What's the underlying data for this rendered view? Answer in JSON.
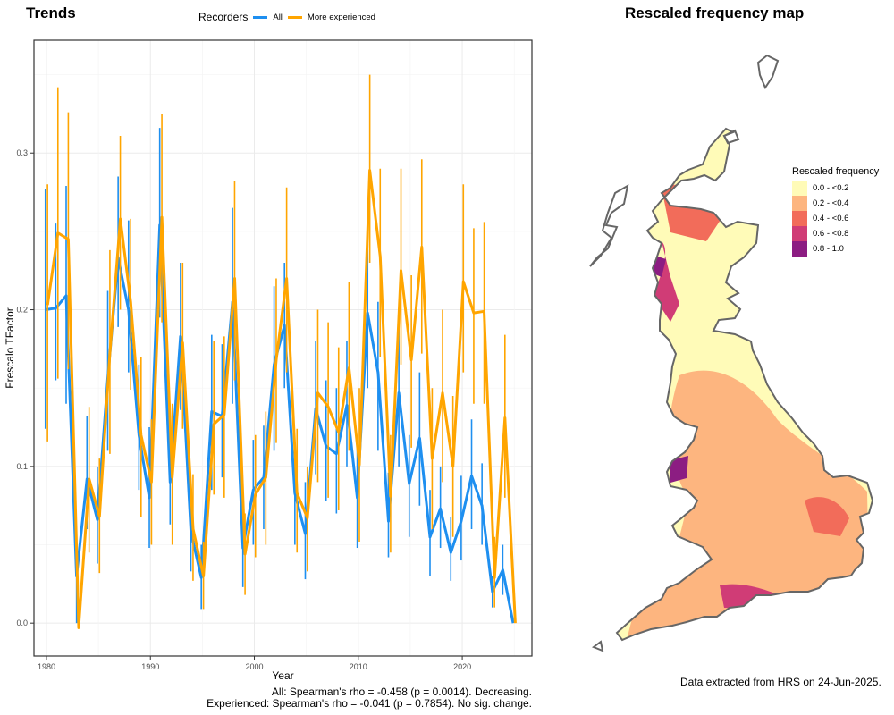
{
  "trends": {
    "title": "Trends",
    "legend": {
      "title": "Recorders",
      "all_label": "All",
      "exp_label": "More experienced"
    },
    "stats_all": "All: Spearman's rho = -0.458 (p = 0.0014). Decreasing.",
    "stats_exp": "Experienced: Spearman's rho = -0.041 (p = 0.7854). No sig. change."
  },
  "map": {
    "title": "Rescaled frequency map",
    "legend_title": "Rescaled frequency",
    "legend_items": [
      {
        "label": "0.0 - <0.2",
        "color": "#FFFBB8"
      },
      {
        "label": "0.2 - <0.4",
        "color": "#FDB57F"
      },
      {
        "label": "0.4 - <0.6",
        "color": "#F26C5A"
      },
      {
        "label": "0.6 - <0.8",
        "color": "#D03C76"
      },
      {
        "label": "0.8 - 1.0",
        "color": "#8C1D82"
      }
    ],
    "credit": "Data extracted from HRS on 24-Jun-2025."
  },
  "colors": {
    "all": "#1E8FF0",
    "exp": "#FFA500"
  },
  "chart_data": {
    "type": "line",
    "title": "Trends",
    "xlabel": "Year",
    "ylabel": "Frescalo TFactor",
    "xlim": [
      1978.8,
      2026.7
    ],
    "ylim": [
      -0.021,
      0.372
    ],
    "xticks": [
      1980,
      1990,
      2000,
      2010,
      2020
    ],
    "yticks": [
      0.0,
      0.1,
      0.2,
      0.3
    ],
    "ytick_labels": [
      "0.0",
      "0.1",
      "0.2",
      "0.3"
    ],
    "grid": true,
    "legend_position": "top",
    "x": [
      1980,
      1981,
      1982,
      1983,
      1984,
      1985,
      1986,
      1987,
      1988,
      1989,
      1990,
      1991,
      1992,
      1993,
      1994,
      1995,
      1996,
      1997,
      1998,
      1999,
      2000,
      2001,
      2002,
      2003,
      2004,
      2005,
      2006,
      2007,
      2008,
      2009,
      2010,
      2011,
      2012,
      2013,
      2014,
      2015,
      2016,
      2017,
      2018,
      2019,
      2020,
      2021,
      2022,
      2023,
      2024,
      2025
    ],
    "series": [
      {
        "name": "All",
        "color": "#1E8FF0",
        "values": [
          0.2,
          0.201,
          0.209,
          0.03,
          0.092,
          0.066,
          0.156,
          0.233,
          0.2,
          0.12,
          0.08,
          0.254,
          0.09,
          0.183,
          0.058,
          0.029,
          0.135,
          0.132,
          0.205,
          0.048,
          0.085,
          0.093,
          0.165,
          0.19,
          0.083,
          0.057,
          0.137,
          0.113,
          0.108,
          0.139,
          0.08,
          0.198,
          0.16,
          0.065,
          0.147,
          0.089,
          0.118,
          0.055,
          0.073,
          0.045,
          0.065,
          0.094,
          0.075,
          0.02,
          0.034,
          0.0
        ],
        "lower": [
          0.124,
          0.155,
          0.14,
          0.0,
          0.06,
          0.038,
          0.11,
          0.189,
          0.16,
          0.085,
          0.048,
          0.195,
          0.063,
          0.136,
          0.033,
          0.009,
          0.085,
          0.093,
          0.14,
          0.023,
          0.05,
          0.06,
          0.11,
          0.15,
          0.05,
          0.028,
          0.095,
          0.078,
          0.07,
          0.1,
          0.048,
          0.15,
          0.11,
          0.042,
          0.1,
          0.055,
          0.075,
          0.03,
          0.048,
          0.027,
          0.04,
          0.06,
          0.05,
          0.01,
          0.018,
          0.0
        ],
        "upper": [
          0.277,
          0.255,
          0.279,
          0.06,
          0.132,
          0.1,
          0.212,
          0.285,
          0.257,
          0.165,
          0.125,
          0.316,
          0.125,
          0.23,
          0.09,
          0.05,
          0.184,
          0.178,
          0.265,
          0.075,
          0.117,
          0.126,
          0.215,
          0.23,
          0.115,
          0.09,
          0.18,
          0.155,
          0.15,
          0.18,
          0.12,
          0.242,
          0.205,
          0.096,
          0.19,
          0.12,
          0.16,
          0.085,
          0.1,
          0.068,
          0.094,
          0.13,
          0.102,
          0.03,
          0.05,
          0.0
        ]
      },
      {
        "name": "More experienced",
        "color": "#FFA500",
        "values": [
          0.203,
          0.249,
          0.245,
          -0.003,
          0.092,
          0.068,
          0.172,
          0.258,
          0.205,
          0.12,
          0.09,
          0.259,
          0.093,
          0.179,
          0.06,
          0.03,
          0.127,
          0.133,
          0.22,
          0.044,
          0.082,
          0.093,
          0.168,
          0.22,
          0.083,
          0.067,
          0.147,
          0.138,
          0.122,
          0.163,
          0.101,
          0.289,
          0.234,
          0.081,
          0.225,
          0.168,
          0.24,
          0.105,
          0.147,
          0.1,
          0.218,
          0.198,
          0.199,
          0.029,
          0.131,
          0.0
        ],
        "lower": [
          0.116,
          0.156,
          0.162,
          -0.003,
          0.045,
          0.032,
          0.108,
          0.2,
          0.149,
          0.068,
          0.05,
          0.192,
          0.05,
          0.124,
          0.027,
          0.009,
          0.082,
          0.08,
          0.155,
          0.018,
          0.042,
          0.05,
          0.115,
          0.16,
          0.045,
          0.033,
          0.09,
          0.08,
          0.072,
          0.11,
          0.052,
          0.23,
          0.17,
          0.045,
          0.165,
          0.112,
          0.172,
          0.06,
          0.09,
          0.055,
          0.16,
          0.14,
          0.14,
          0.01,
          0.08,
          0.0
        ],
        "upper": [
          0.28,
          0.342,
          0.326,
          0.001,
          0.138,
          0.105,
          0.238,
          0.311,
          0.258,
          0.17,
          0.13,
          0.325,
          0.14,
          0.23,
          0.095,
          0.052,
          0.18,
          0.183,
          0.282,
          0.07,
          0.12,
          0.135,
          0.22,
          0.278,
          0.124,
          0.1,
          0.2,
          0.192,
          0.176,
          0.218,
          0.15,
          0.35,
          0.29,
          0.12,
          0.29,
          0.222,
          0.296,
          0.15,
          0.2,
          0.145,
          0.28,
          0.252,
          0.256,
          0.055,
          0.184,
          0.0
        ]
      }
    ]
  }
}
